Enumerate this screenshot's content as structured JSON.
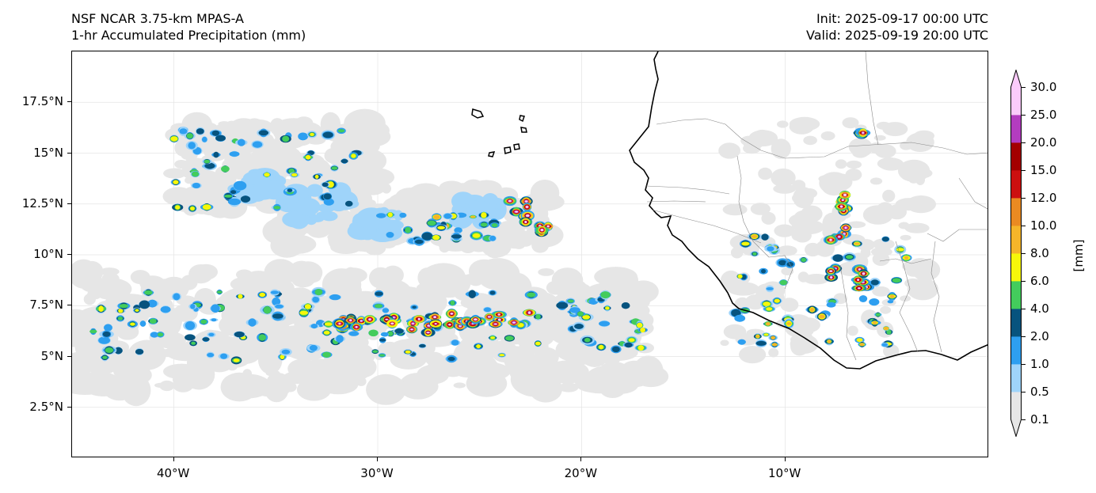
{
  "header": {
    "model": "NSF NCAR 3.75-km MPAS-A",
    "field": "1-hr Accumulated Precipitation (mm)",
    "init": "Init: 2025-09-17 00:00 UTC",
    "valid": "Valid: 2025-09-19 20:00 UTC"
  },
  "map": {
    "lon_range": [
      -45,
      0
    ],
    "lat_range": [
      0,
      20
    ],
    "lat_ticks": [
      {
        "value": 2.5,
        "label": "2.5°N"
      },
      {
        "value": 5,
        "label": "5°N"
      },
      {
        "value": 7.5,
        "label": "7.5°N"
      },
      {
        "value": 10,
        "label": "10°N"
      },
      {
        "value": 12.5,
        "label": "12.5°N"
      },
      {
        "value": 15,
        "label": "15°N"
      },
      {
        "value": 17.5,
        "label": "17.5°N"
      }
    ],
    "lon_ticks": [
      {
        "value": -40,
        "label": "40°W"
      },
      {
        "value": -30,
        "label": "30°W"
      },
      {
        "value": -20,
        "label": "20°W"
      },
      {
        "value": -10,
        "label": "10°W"
      }
    ],
    "gridlines": true
  },
  "colorbar": {
    "unit": "[mm]",
    "levels": [
      "0.1",
      "0.5",
      "1.0",
      "2.0",
      "4.0",
      "6.0",
      "8.0",
      "10.0",
      "12.0",
      "15.0",
      "20.0",
      "25.0",
      "30.0"
    ],
    "colors": [
      "#e6e6e6",
      "#9fd4fa",
      "#2e9ff0",
      "#07537e",
      "#43cc5c",
      "#f7f70a",
      "#f5b52a",
      "#ea8a22",
      "#cc1010",
      "#a30000",
      "#b33cbf",
      "#fbcbfb"
    ],
    "extend": "both"
  },
  "precip_bands": [
    {
      "name": "itcz-band",
      "lon": [
        -45,
        -16.5
      ],
      "lat": [
        3.3,
        9.2
      ]
    },
    {
      "name": "northwest-cluster",
      "lon": [
        -40,
        -30
      ],
      "lat": [
        12,
        16.5
      ]
    },
    {
      "name": "central-cluster",
      "lon": [
        -35,
        -21.5
      ],
      "lat": [
        10.3,
        13.3
      ]
    },
    {
      "name": "west-africa-systems",
      "lon": [
        -13,
        -3
      ],
      "lat": [
        5,
        16.5
      ]
    }
  ]
}
